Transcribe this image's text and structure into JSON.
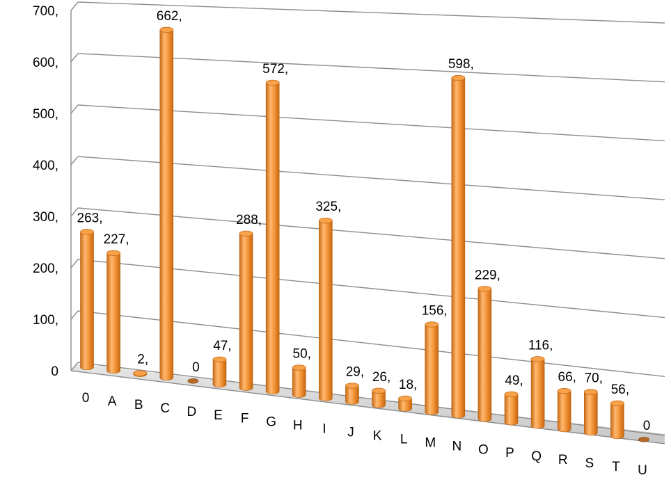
{
  "chart_data": {
    "type": "bar",
    "style": "3d-cylinder",
    "categories": [
      "0",
      "A",
      "B",
      "C",
      "D",
      "E",
      "F",
      "G",
      "H",
      "I",
      "J",
      "K",
      "L",
      "M",
      "N",
      "O",
      "P",
      "Q",
      "R",
      "S",
      "T",
      "U"
    ],
    "values": [
      263,
      227,
      2,
      662,
      0,
      47,
      288,
      572,
      50,
      325,
      29,
      26,
      18,
      156,
      598,
      229,
      49,
      116,
      66,
      70,
      56,
      0
    ],
    "data_labels": [
      "263,",
      "227,",
      "2,",
      "662,",
      "0",
      "47,",
      "288,",
      "572,",
      "50,",
      "325,",
      "29,",
      "26,",
      "18,",
      "156,",
      "598,",
      "229,",
      "49,",
      "116,",
      "66,",
      "70,",
      "56,",
      "0"
    ],
    "y_ticks": [
      "0",
      "100,",
      "200,",
      "300,",
      "400,",
      "500,",
      "600,",
      "700,"
    ],
    "ylim": [
      0,
      700
    ],
    "grid": true,
    "legend": "none",
    "bar_color": "#f29a3c"
  }
}
